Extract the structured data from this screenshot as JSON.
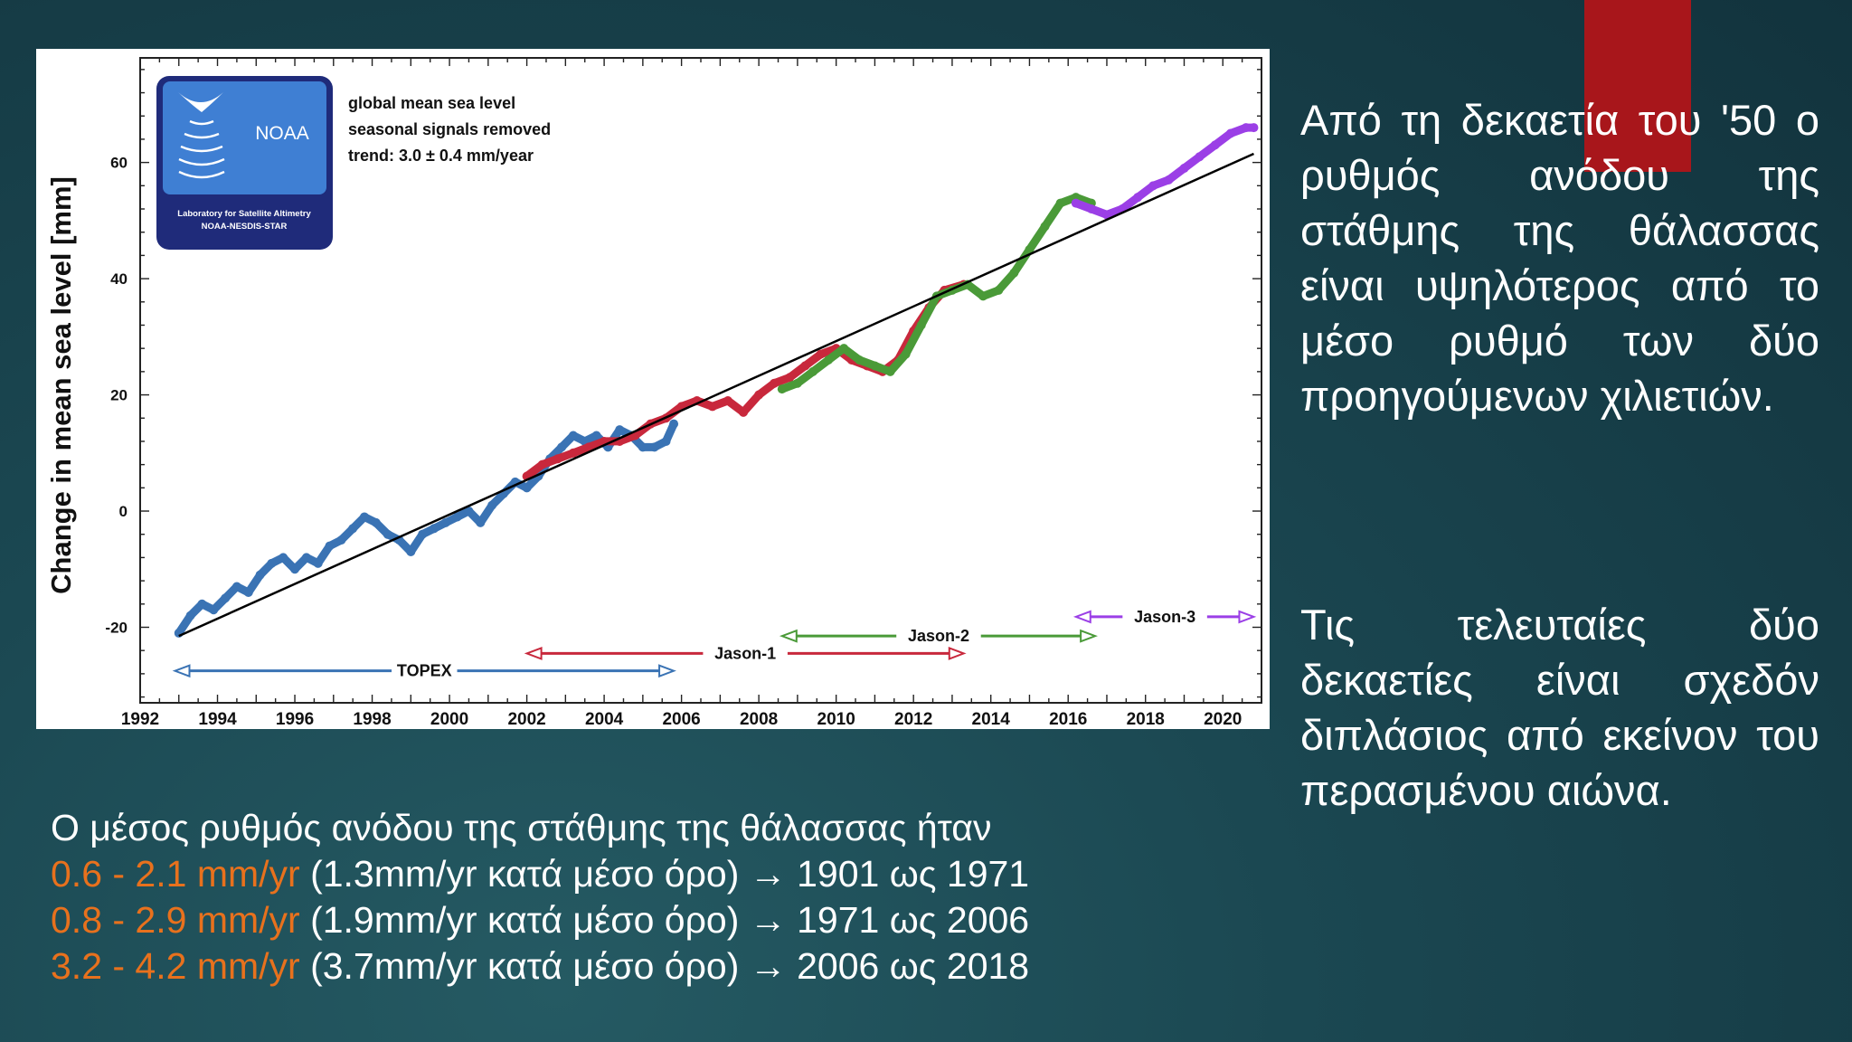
{
  "colors": {
    "topex": "#3a73b4",
    "jason1": "#c8283c",
    "jason2": "#4a9a38",
    "jason3": "#9b3fe6",
    "trend": "#000000",
    "accent": "#e8711d",
    "red_bar": "#a8161b",
    "noaa_logo": "#1f2b7a"
  },
  "chart": {
    "legend_text": {
      "line1": "global mean sea level",
      "line2": "seasonal signals removed",
      "line3": "trend:  3.0 ± 0.4 mm/year"
    },
    "logo": {
      "name": "NOAA",
      "sub1": "Laboratory for Satellite Altimetry",
      "sub2": "NOAA-NESDIS-STAR"
    }
  },
  "chart_data": {
    "type": "line",
    "ylabel": "Change in mean sea level [mm]",
    "xlabel": "",
    "xlim": [
      1992,
      2021
    ],
    "ylim": [
      -33,
      78
    ],
    "x_ticks": [
      "1992",
      "1994",
      "1996",
      "1998",
      "2000",
      "2002",
      "2004",
      "2006",
      "2008",
      "2010",
      "2012",
      "2014",
      "2016",
      "2018",
      "2020"
    ],
    "y_ticks": [
      "-20",
      "0",
      "20",
      "40",
      "60"
    ],
    "trend": {
      "slope_mm_per_year": 3.0,
      "x": [
        1993.0,
        2020.8
      ],
      "y": [
        -21.5,
        61.5
      ]
    },
    "series": [
      {
        "name": "TOPEX",
        "color_key": "topex",
        "mission_years": [
          1992.9,
          2005.8
        ],
        "y_label_pos": -27.5,
        "x": [
          1993.0,
          1993.3,
          1993.6,
          1993.9,
          1994.2,
          1994.5,
          1994.8,
          1995.1,
          1995.4,
          1995.7,
          1996.0,
          1996.3,
          1996.6,
          1996.9,
          1997.2,
          1997.5,
          1997.8,
          1998.1,
          1998.4,
          1998.7,
          1999.0,
          1999.3,
          1999.6,
          1999.9,
          2000.2,
          2000.5,
          2000.8,
          2001.1,
          2001.4,
          2001.7,
          2002.0,
          2002.3,
          2002.6,
          2002.9,
          2003.2,
          2003.5,
          2003.8,
          2004.1,
          2004.4,
          2004.7,
          2005.0,
          2005.3,
          2005.6,
          2005.8
        ],
        "y": [
          -21,
          -18,
          -16,
          -17,
          -15,
          -13,
          -14,
          -11,
          -9,
          -8,
          -10,
          -8,
          -9,
          -6,
          -5,
          -3,
          -1,
          -2,
          -4,
          -5,
          -7,
          -4,
          -3,
          -2,
          -1,
          0,
          -2,
          1,
          3,
          5,
          4,
          6,
          9,
          11,
          13,
          12,
          13,
          11,
          14,
          13,
          11,
          11,
          12,
          15
        ]
      },
      {
        "name": "Jason-1",
        "color_key": "jason1",
        "mission_years": [
          2002.0,
          2013.3
        ],
        "y_label_pos": -24.5,
        "x": [
          2002.0,
          2002.4,
          2002.8,
          2003.2,
          2003.6,
          2004.0,
          2004.4,
          2004.8,
          2005.2,
          2005.6,
          2006.0,
          2006.4,
          2006.8,
          2007.2,
          2007.6,
          2008.0,
          2008.4,
          2008.8,
          2009.2,
          2009.6,
          2010.0,
          2010.4,
          2010.8,
          2011.2,
          2011.6,
          2012.0,
          2012.4,
          2012.8,
          2013.3
        ],
        "y": [
          6,
          8,
          9,
          10,
          11,
          12,
          12,
          13,
          15,
          16,
          18,
          19,
          18,
          19,
          17,
          20,
          22,
          23,
          25,
          27,
          28,
          26,
          25,
          24,
          26,
          31,
          35,
          38,
          39
        ]
      },
      {
        "name": "Jason-2",
        "color_key": "jason2",
        "mission_years": [
          2008.6,
          2016.7
        ],
        "y_label_pos": -21.5,
        "x": [
          2008.6,
          2009.0,
          2009.4,
          2009.8,
          2010.2,
          2010.6,
          2011.0,
          2011.4,
          2011.8,
          2012.2,
          2012.6,
          2013.0,
          2013.4,
          2013.8,
          2014.2,
          2014.6,
          2015.0,
          2015.4,
          2015.8,
          2016.2,
          2016.6
        ],
        "y": [
          21,
          22,
          24,
          26,
          28,
          26,
          25,
          24,
          27,
          32,
          37,
          38,
          39,
          37,
          38,
          41,
          45,
          49,
          53,
          54,
          53
        ]
      },
      {
        "name": "Jason-3",
        "color_key": "jason3",
        "mission_years": [
          2016.2,
          2020.8
        ],
        "y_label_pos": -18.2,
        "x": [
          2016.2,
          2016.6,
          2017.0,
          2017.4,
          2017.8,
          2018.2,
          2018.6,
          2019.0,
          2019.4,
          2019.8,
          2020.2,
          2020.6,
          2020.8
        ],
        "y": [
          53,
          52,
          51,
          52,
          54,
          56,
          57,
          59,
          61,
          63,
          65,
          66,
          66
        ]
      }
    ]
  },
  "slide": {
    "para1": "Από τη δεκαετία του '50 ο ρυθμός ανόδου της στάθμης της θάλασσας είναι υψηλότερος από το μέσο ρυθμό των δύο προηγούμενων χιλιετιών.",
    "para2": "Τις τελευταίες δύο δεκαετίες είναι σχεδόν διπλάσιος από εκείνον του περασμένου αιώνα.",
    "bottom": {
      "intro": "Ο μέσος ρυθμός ανόδου της στάθμης της θάλασσας ήταν",
      "rows": [
        {
          "range": "0.6 - 2.1 mm/yr",
          "rest": " (1.3mm/yr κατά μέσο όρο) → 1901 ως 1971"
        },
        {
          "range": "0.8 - 2.9 mm/yr",
          "rest": " (1.9mm/yr κατά μέσο όρο) → 1971 ως 2006"
        },
        {
          "range": "3.2 - 4.2 mm/yr",
          "rest": " (3.7mm/yr κατά μέσο όρο) → 2006 ως 2018"
        }
      ]
    }
  }
}
